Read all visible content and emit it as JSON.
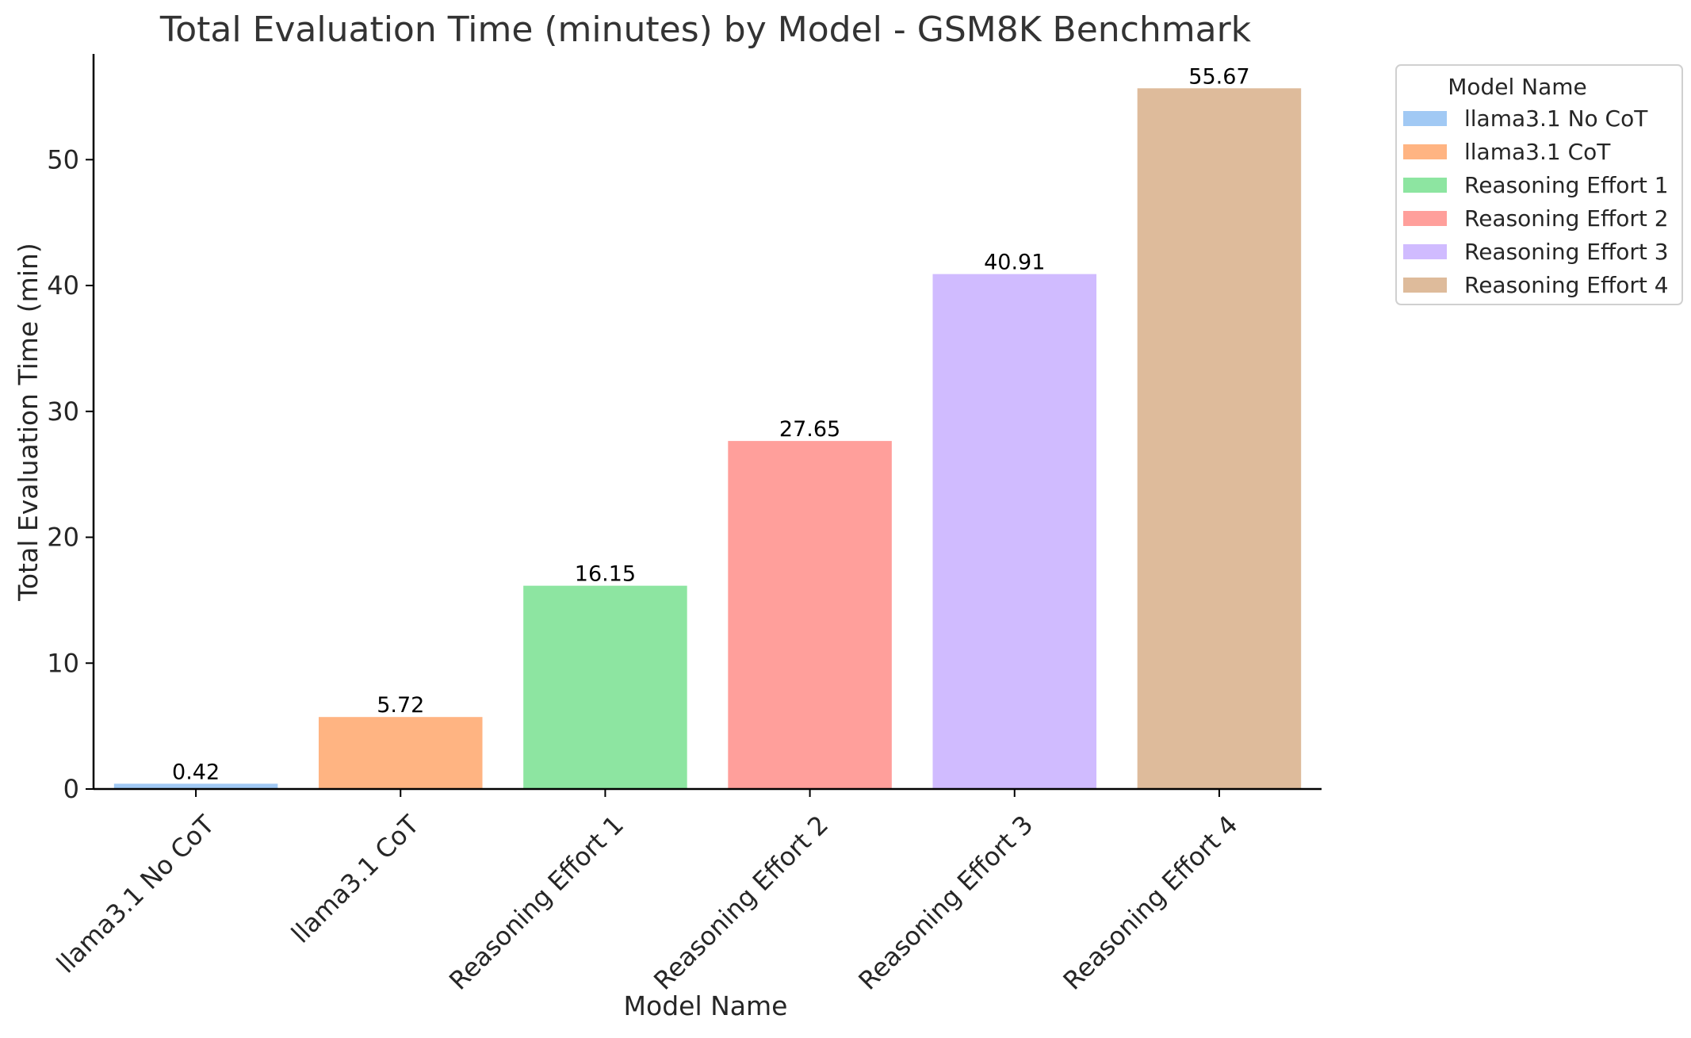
{
  "chart_data": {
    "type": "bar",
    "title": "Total Evaluation Time (minutes) by Model - GSM8K Benchmark",
    "xlabel": "Model Name",
    "ylabel": "Total Evaluation Time (min)",
    "categories": [
      "llama3.1 No CoT",
      "llama3.1 CoT",
      "Reasoning Effort 1",
      "Reasoning Effort 2",
      "Reasoning Effort 3",
      "Reasoning Effort 4"
    ],
    "values": [
      0.42,
      5.72,
      16.15,
      27.65,
      40.91,
      55.67
    ],
    "value_labels": [
      "0.42",
      "5.72",
      "16.15",
      "27.65",
      "40.91",
      "55.67"
    ],
    "colors": [
      "#a1c9f4",
      "#ffb482",
      "#8de5a1",
      "#ff9f9b",
      "#d0bbff",
      "#debb9b"
    ],
    "ylim": [
      0,
      58.4
    ],
    "yticks": [
      0,
      10,
      20,
      30,
      40,
      50
    ],
    "grid": false,
    "legend": {
      "title": "Model Name",
      "placement": "outside-upper-right",
      "entries": [
        "llama3.1 No CoT",
        "llama3.1 CoT",
        "Reasoning Effort 1",
        "Reasoning Effort 2",
        "Reasoning Effort 3",
        "Reasoning Effort 4"
      ]
    }
  }
}
